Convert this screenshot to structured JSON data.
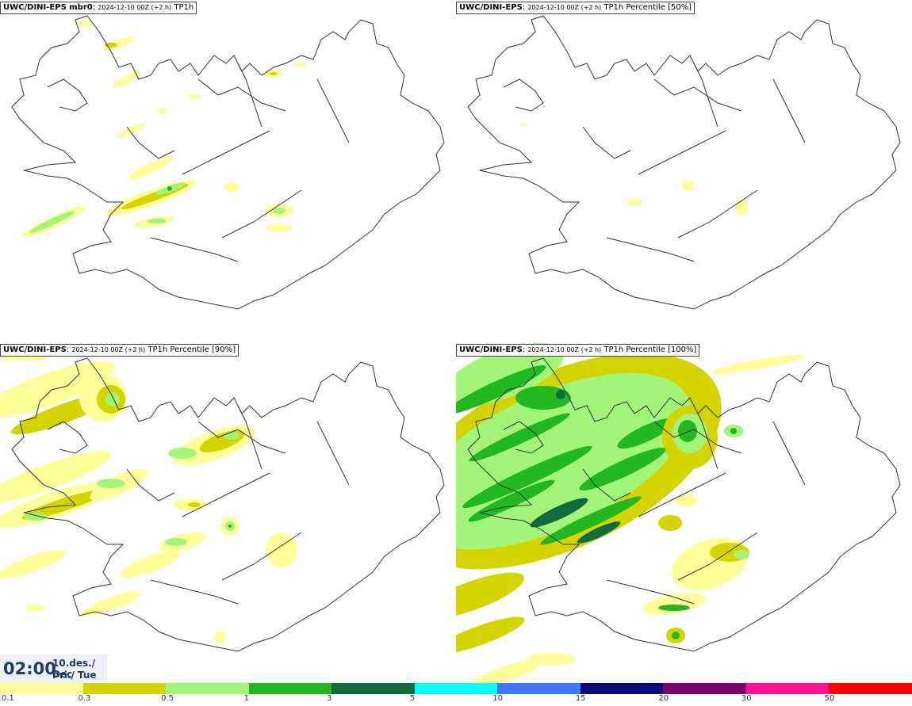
{
  "panels": [
    {
      "model": "UWC/DINI-EPS mbr0",
      "run": "2024-12-10 00Z (+2 h)",
      "field": "TP1h"
    },
    {
      "model": "UWC/DINI-EPS",
      "run": "2024-12-10 00Z (+2 h)",
      "field": "TP1h Percentile [50%]"
    },
    {
      "model": "UWC/DINI-EPS",
      "run": "2024-12-10 00Z (+2 h)",
      "field": "TP1h Percentile [90%]"
    },
    {
      "model": "UWC/DINI-EPS",
      "run": "2024-12-10 00Z (+2 h)",
      "field": "TP1h Percentile [100%]"
    }
  ],
  "time": {
    "clock": "02:00",
    "date": "10.des./ Dec",
    "day": "Þri./ Tue"
  },
  "colorbar": {
    "colors": [
      "#ffff99",
      "#d4d400",
      "#a3f57a",
      "#22b822",
      "#0e6b3c",
      "#00ffff",
      "#3d78ff",
      "#0a0a7a",
      "#7a006b",
      "#ff1493",
      "#ff0000"
    ],
    "labels": [
      "0.1",
      "0.3",
      "0.5",
      "1",
      "3",
      "5",
      "10",
      "15",
      "20",
      "30",
      "50"
    ]
  }
}
